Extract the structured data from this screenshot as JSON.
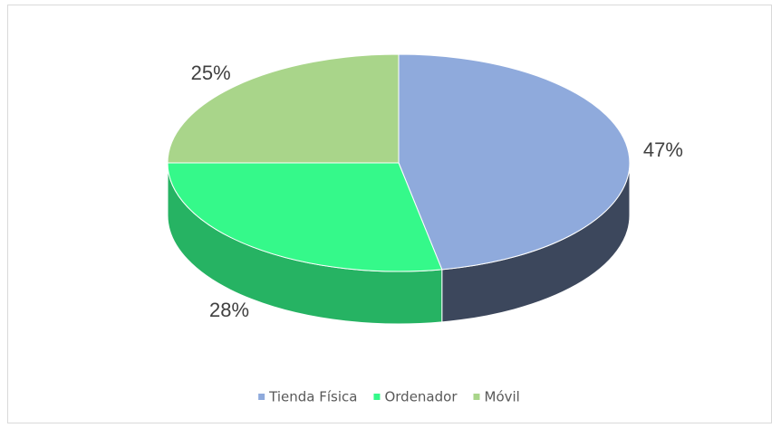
{
  "chart_data": {
    "type": "pie",
    "categories": [
      "Tienda Física",
      "Ordenador",
      "Móvil"
    ],
    "values": [
      47,
      28,
      25
    ],
    "value_labels": [
      "47%",
      "28%",
      "25%"
    ],
    "colors": [
      "#8faadc",
      "#35f98a",
      "#a9d58a"
    ],
    "legend": "bottom"
  }
}
